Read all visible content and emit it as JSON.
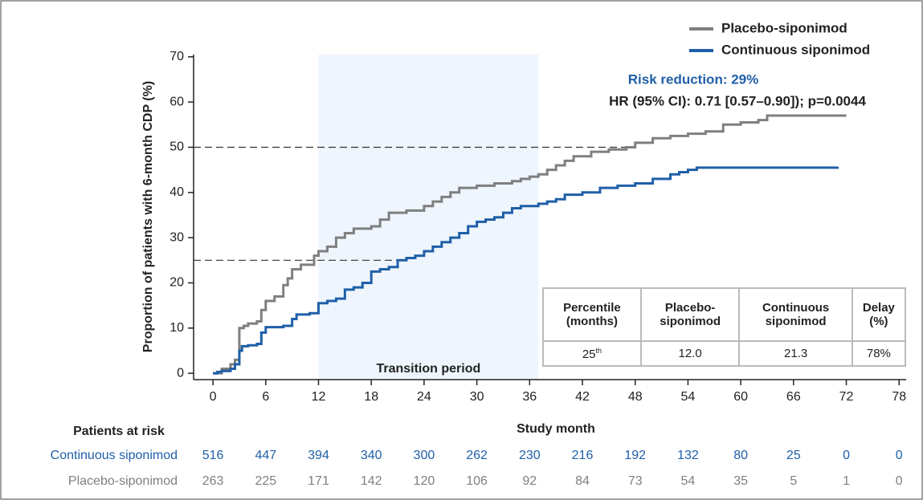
{
  "chart_data": {
    "type": "line",
    "step": true,
    "y_label": "Proportion of patients with 6-month CDP (%)",
    "x_label": "Study month",
    "xlim": [
      -2.2,
      78.8
    ],
    "ylim": [
      -1.4,
      70.5
    ],
    "xticks": [
      0,
      6,
      12,
      18,
      24,
      30,
      36,
      42,
      48,
      54,
      60,
      66,
      72,
      78
    ],
    "yticks": [
      0,
      10,
      20,
      30,
      40,
      50,
      60,
      70
    ],
    "legend": "top-right",
    "shaded_region": {
      "x": [
        12,
        37
      ],
      "color": "#eef5fc",
      "label": "Transition period"
    },
    "reference_lines": [
      {
        "y": 50,
        "x_end": 47.5
      },
      {
        "y": 25,
        "x_end": 21
      }
    ],
    "annotations": [
      "Risk reduction: 29%",
      "HR (95% CI): 0.71 [0.57–0.90]); p=0.0044"
    ],
    "series": [
      {
        "name": "Placebo-siponimod",
        "color": "#7f7f7f",
        "x": [
          0,
          1,
          2,
          2.5,
          3,
          3.5,
          4,
          5,
          5.5,
          6,
          7,
          8,
          8.5,
          9,
          10,
          11.5,
          12,
          13,
          14,
          15,
          16,
          18,
          19,
          20,
          22,
          24,
          25,
          26,
          27,
          28,
          30,
          32,
          34,
          35,
          36,
          37,
          38,
          39,
          40,
          41,
          43,
          45,
          47,
          48,
          50,
          52,
          54,
          56,
          58,
          60,
          62,
          63,
          72
        ],
        "values": [
          0,
          1,
          2,
          3,
          10,
          10.5,
          11,
          11.5,
          14,
          16,
          17,
          19.5,
          21,
          23,
          24,
          26,
          27,
          28,
          30,
          31,
          32,
          32.5,
          34,
          35.5,
          36,
          37,
          38,
          39,
          40,
          41,
          41.5,
          42,
          42.5,
          43,
          43.5,
          44,
          45,
          46,
          47,
          48,
          49,
          49.5,
          50,
          51,
          52,
          52.5,
          53,
          53.5,
          55,
          55.5,
          56,
          57,
          57
        ]
      },
      {
        "name": "Continuous siponimod",
        "color": "#1f5fa8",
        "x": [
          0,
          0.5,
          1,
          2,
          2.5,
          3,
          3.3,
          4,
          5,
          5.5,
          6,
          8,
          9,
          9.5,
          11,
          12,
          13,
          14,
          15,
          16,
          17,
          18,
          19,
          20,
          21,
          22,
          23,
          24,
          25,
          26,
          27,
          28,
          29,
          30,
          31,
          32,
          33,
          34,
          35,
          37,
          38,
          39,
          40,
          42,
          44,
          46,
          48,
          50,
          52,
          53,
          54,
          55,
          71
        ],
        "values": [
          0,
          0.3,
          0.5,
          1,
          2,
          5,
          6,
          6.2,
          6.5,
          9,
          10.2,
          10.5,
          12,
          13,
          13.3,
          15.5,
          16,
          16.5,
          18.5,
          19,
          20,
          22.5,
          23,
          23.5,
          25,
          25.5,
          26,
          27,
          28,
          29,
          30,
          31,
          32.5,
          33.5,
          34,
          34.5,
          35.5,
          36.5,
          37,
          37.5,
          38,
          38.5,
          39.5,
          40,
          41,
          41.5,
          42,
          43,
          44,
          44.5,
          45,
          45.5,
          45.7
        ]
      }
    ],
    "table": {
      "header": [
        "Percentile (months)",
        "Placebo-siponimod",
        "Continuous siponimod",
        "Delay (%)"
      ],
      "row": {
        "percentile": "25",
        "suffix": "th",
        "cells": [
          "12.0",
          "21.3",
          "78%"
        ]
      }
    },
    "risk_table": {
      "title": "Patients at risk",
      "rows": [
        {
          "name": "Continuous siponimod",
          "color": "#1f5fa8",
          "counts": [
            516,
            447,
            394,
            340,
            300,
            262,
            230,
            216,
            192,
            132,
            80,
            25,
            0,
            0
          ]
        },
        {
          "name": "Placebo-siponimod",
          "color": "#7f7f7f",
          "counts": [
            263,
            225,
            171,
            142,
            120,
            106,
            92,
            84,
            73,
            54,
            35,
            5,
            1,
            0
          ]
        }
      ]
    }
  }
}
